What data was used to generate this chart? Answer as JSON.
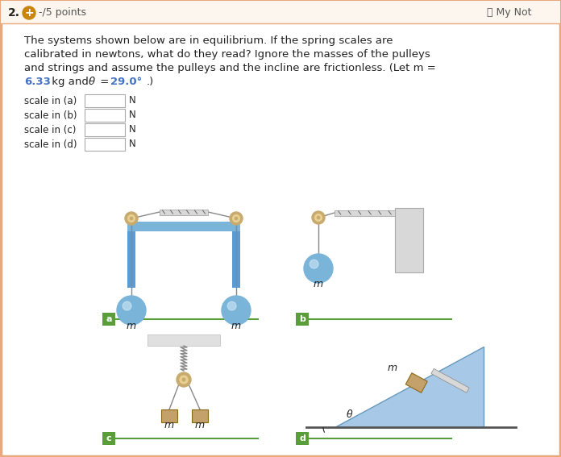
{
  "bg_color": "#ffffff",
  "border_color": "#e8a87c",
  "header_bg": "#fdf6ee",
  "blue_text": "#4472c4",
  "dark_text": "#222222",
  "gray_text": "#555555",
  "plus_color": "#c8860a",
  "points_text": "-/5 points",
  "mynote_text": "⎙ My Not",
  "problem_lines": [
    "The systems shown below are in equilibrium. If the spring scales are",
    "calibrated in newtons, what do they read? Ignore the masses of the pulleys",
    "and strings and assume the pulleys and the incline are frictionless. (Let m ="
  ],
  "colored_m": "6.33",
  "colored_theta": "29.0°",
  "labels": [
    "scale in (a)",
    "scale in (b)",
    "scale in (c)",
    "scale in (d)"
  ],
  "label_unit": "N",
  "box_border": "#aaaaaa",
  "frame_blue": "#7ab4d8",
  "frame_blue_dark": "#5b9bd5",
  "light_blue_fill": "#c5dff0",
  "ball_blue": "#7ab4d8",
  "pulley_tan": "#c8aa6e",
  "pulley_light": "#e8d090",
  "spring_gray": "#aaaaaa",
  "green_label": "#5a9e3a",
  "tan_mass": "#c4a06a",
  "wall_gray": "#cccccc",
  "incline_blue": "#a8c8e8"
}
